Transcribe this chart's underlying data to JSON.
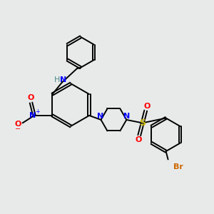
{
  "bg_color": "#e8eaea",
  "bond_color": "#000000",
  "bond_width": 1.4,
  "colors": {
    "N": "#0000ff",
    "O": "#ff0000",
    "S": "#ccbb00",
    "Br": "#cc6600",
    "H": "#4a8888",
    "C": "#000000"
  },
  "scale": 1.0
}
